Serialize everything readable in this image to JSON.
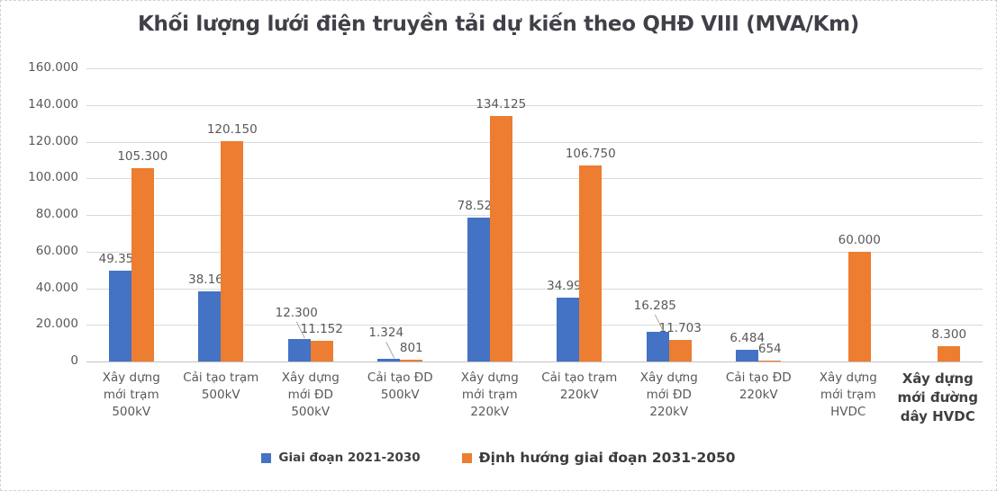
{
  "chart_data": {
    "type": "bar",
    "title": "Khối lượng lưới điện truyền tải dự kiến theo QHĐ VIII (MVA/Km)",
    "categories": [
      "Xây dựng\nmới trạm\n500kV",
      "Cải tạo trạm\n500kV",
      "Xây dựng\nmới ĐD\n500kV",
      "Cải tạo ĐD\n500kV",
      "Xây dựng\nmới trạm\n220kV",
      "Cải tạo trạm\n220kV",
      "Xây dựng\nmới ĐD\n220kV",
      "Cải tạo ĐD\n220kV",
      "Xây dựng\nmới trạm\nHVDC",
      "Xây dựng\nmới đường\ndây HVDC"
    ],
    "series": [
      {
        "name": "Giai đoạn 2021-2030",
        "color": "#4472C4",
        "values": [
          49350,
          38168,
          12300,
          1324,
          78525,
          34997,
          16285,
          6484,
          null,
          null
        ],
        "labels": [
          "49.350",
          "38.168",
          "12.300",
          "1.324",
          "78.525",
          "34.997",
          "16.285",
          "6.484",
          "",
          ""
        ]
      },
      {
        "name": "Định hướng giai đoạn 2031-2050",
        "color": "#ED7D31",
        "values": [
          105300,
          120150,
          11152,
          801,
          134125,
          106750,
          11703,
          654,
          60000,
          8300
        ],
        "labels": [
          "105.300",
          "120.150",
          "11.152",
          "801",
          "134.125",
          "106.750",
          "11.703",
          "654",
          "60.000",
          "8.300"
        ]
      }
    ],
    "ylim": [
      0,
      160000
    ],
    "ytick_step": 20000,
    "ytick_labels": [
      "0",
      "20.000",
      "40.000",
      "60.000",
      "80.000",
      "100.000",
      "120.000",
      "140.000",
      "160.000"
    ],
    "grid": true,
    "legend_position": "bottom",
    "callout_indices": [
      2,
      3,
      6
    ],
    "emphasized_category_index": 9,
    "colors": {
      "series_blue": "#4472C4",
      "series_orange": "#ED7D31",
      "gridline": "#D9D9D9",
      "axis_text": "#595959",
      "leader_line": "#A6A6A6"
    }
  }
}
